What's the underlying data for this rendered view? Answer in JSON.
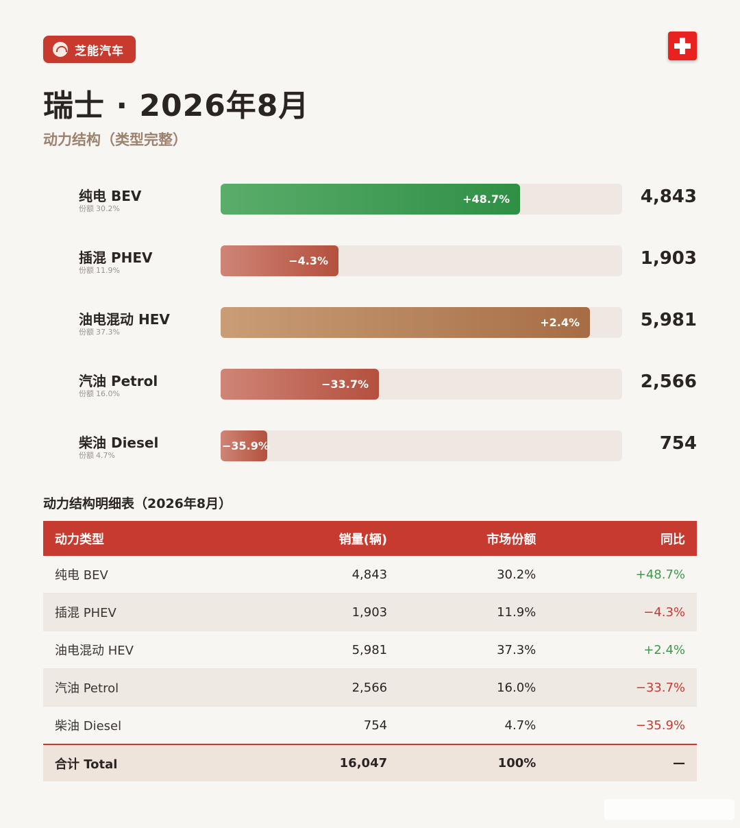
{
  "brand": {
    "name": "芝能汽车",
    "logo_icon": "car-badge-icon",
    "color": "#c8392e"
  },
  "flag": {
    "icon": "swiss-flag-icon",
    "color": "#e8231f"
  },
  "title": "瑞士 · 2026年8月",
  "subtitle": "动力结构（类型完整）",
  "chart_data": {
    "type": "bar",
    "orientation": "horizontal",
    "title": "瑞士 · 2026年8月",
    "subtitle": "动力结构（类型完整）",
    "share_prefix": "份额",
    "series": [
      {
        "name": "纯电 BEV",
        "value": 4843,
        "share": "30.2%",
        "yoy": "+48.7%",
        "color_from": "#5aad6a",
        "color_to": "#2f8f45"
      },
      {
        "name": "插混 PHEV",
        "value": 1903,
        "share": "11.9%",
        "yoy": "−4.3%",
        "color_from": "#cf8576",
        "color_to": "#b4503e"
      },
      {
        "name": "油电混动 HEV",
        "value": 5981,
        "share": "37.3%",
        "yoy": "+2.4%",
        "color_from": "#c99d76",
        "color_to": "#a66d45"
      },
      {
        "name": "汽油 Petrol",
        "value": 2566,
        "share": "16.0%",
        "yoy": "−33.7%",
        "color_from": "#cf8576",
        "color_to": "#b4503e"
      },
      {
        "name": "柴油 Diesel",
        "value": 754,
        "share": "4.7%",
        "yoy": "−35.9%",
        "color_from": "#cf8576",
        "color_to": "#b4503e"
      }
    ],
    "categories": [
      "纯电 BEV",
      "插混 PHEV",
      "油电混动 HEV",
      "汽油 Petrol",
      "柴油 Diesel"
    ],
    "values": [
      4843,
      1903,
      5981,
      2566,
      754
    ],
    "xlim": [
      0,
      6500
    ],
    "value_labels": [
      "4,843",
      "1,903",
      "5,981",
      "2,566",
      "754"
    ]
  },
  "table": {
    "title": "动力结构明细表（2026年8月）",
    "columns": [
      "动力类型",
      "销量(辆)",
      "市场份额",
      "同比"
    ],
    "rows": [
      {
        "type": "纯电 BEV",
        "sales": "4,843",
        "share": "30.2%",
        "yoy": "+48.7%",
        "trend": "pos"
      },
      {
        "type": "插混 PHEV",
        "sales": "1,903",
        "share": "11.9%",
        "yoy": "−4.3%",
        "trend": "neg"
      },
      {
        "type": "油电混动 HEV",
        "sales": "5,981",
        "share": "37.3%",
        "yoy": "+2.4%",
        "trend": "pos"
      },
      {
        "type": "汽油 Petrol",
        "sales": "2,566",
        "share": "16.0%",
        "yoy": "−33.7%",
        "trend": "neg"
      },
      {
        "type": "柴油 Diesel",
        "sales": "754",
        "share": "4.7%",
        "yoy": "−35.9%",
        "trend": "neg"
      }
    ],
    "total": {
      "type": "合计 Total",
      "sales": "16,047",
      "share": "100%",
      "yoy": "—"
    }
  },
  "colors": {
    "header_red": "#c63a2f",
    "positive": "#3b9a4a",
    "negative": "#c8392e",
    "background": "#f8f6f3",
    "track": "#efe8e2"
  }
}
